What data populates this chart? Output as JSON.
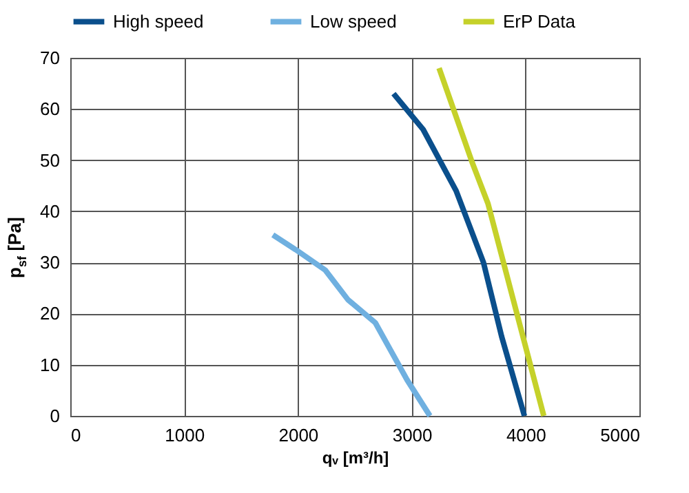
{
  "chart_data": {
    "type": "line",
    "xlabel": "qᵥ [m³/h]",
    "ylabel": "p$_{sf}$ [Pa]",
    "series": [
      {
        "name": "High speed",
        "color": "#0a4f8c",
        "x": [
          2840,
          3100,
          3390,
          3630,
          3790,
          3990
        ],
        "values": [
          63,
          56,
          44,
          30,
          15.5,
          0
        ]
      },
      {
        "name": "Low speed",
        "color": "#6fb0e0",
        "x": [
          1780,
          1980,
          2240,
          2440,
          2680,
          2960,
          3160
        ],
        "values": [
          35.4,
          32.5,
          28.5,
          22.7,
          18.2,
          7,
          0
        ]
      },
      {
        "name": "ErP Data",
        "color": "#c5d12a",
        "x": [
          3240,
          3530,
          3670,
          4160
        ],
        "values": [
          68,
          49.6,
          41.5,
          0
        ]
      }
    ],
    "xlim": [
      0,
      5000
    ],
    "xticks": [
      0,
      1000,
      2000,
      3000,
      4000,
      5000
    ],
    "ylim": [
      0,
      70
    ],
    "yticks": [
      0,
      10,
      20,
      30,
      40,
      50,
      60,
      70
    ],
    "grid": true,
    "legend": "top",
    "marker": "none",
    "line_style": "solid"
  }
}
